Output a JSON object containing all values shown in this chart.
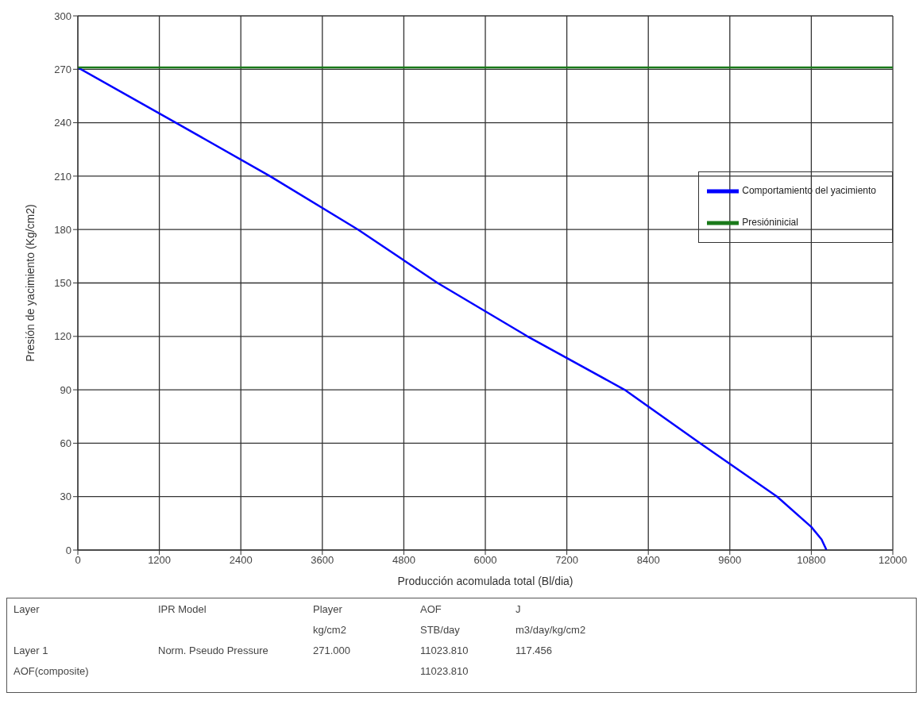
{
  "chart_data": {
    "type": "line",
    "xlabel": "Producción acomulada total (Bl/dia)",
    "ylabel": "Presión de yacimiento (Kg/cm2)",
    "xlim": [
      0,
      12000
    ],
    "xticks": [
      0,
      1200,
      2400,
      3600,
      4800,
      6000,
      7200,
      8400,
      9600,
      10800,
      12000
    ],
    "ylim": [
      0,
      300
    ],
    "yticks": [
      0,
      30,
      60,
      90,
      120,
      150,
      180,
      210,
      240,
      270,
      300
    ],
    "grid": true,
    "legend": "right",
    "marker": "none",
    "series": [
      {
        "name": "Comportamiento del yacimiento",
        "color": "#0000ff",
        "x": [
          0,
          1443,
          2828,
          4125,
          5297,
          6621,
          8051,
          9164,
          10297,
          10800,
          10950,
          11024
        ],
        "values": [
          271,
          240,
          210,
          180,
          150,
          120,
          90,
          60,
          30,
          13,
          6,
          0
        ]
      },
      {
        "name": "Presióninicial",
        "color": "#1a7a1a",
        "x": [
          0,
          12000
        ],
        "values": [
          271,
          271
        ]
      }
    ],
    "annotations": [
      "Layer",
      "IPR Model",
      "Player",
      "AOF",
      "J",
      "kg/cm2",
      "STB/day",
      "m3/day/kg/cm2",
      "Layer 1",
      "Norm. Pseudo Pressure",
      "271.000",
      "11023.810",
      "117.456",
      "AOF(composite)",
      "11023.810"
    ]
  }
}
